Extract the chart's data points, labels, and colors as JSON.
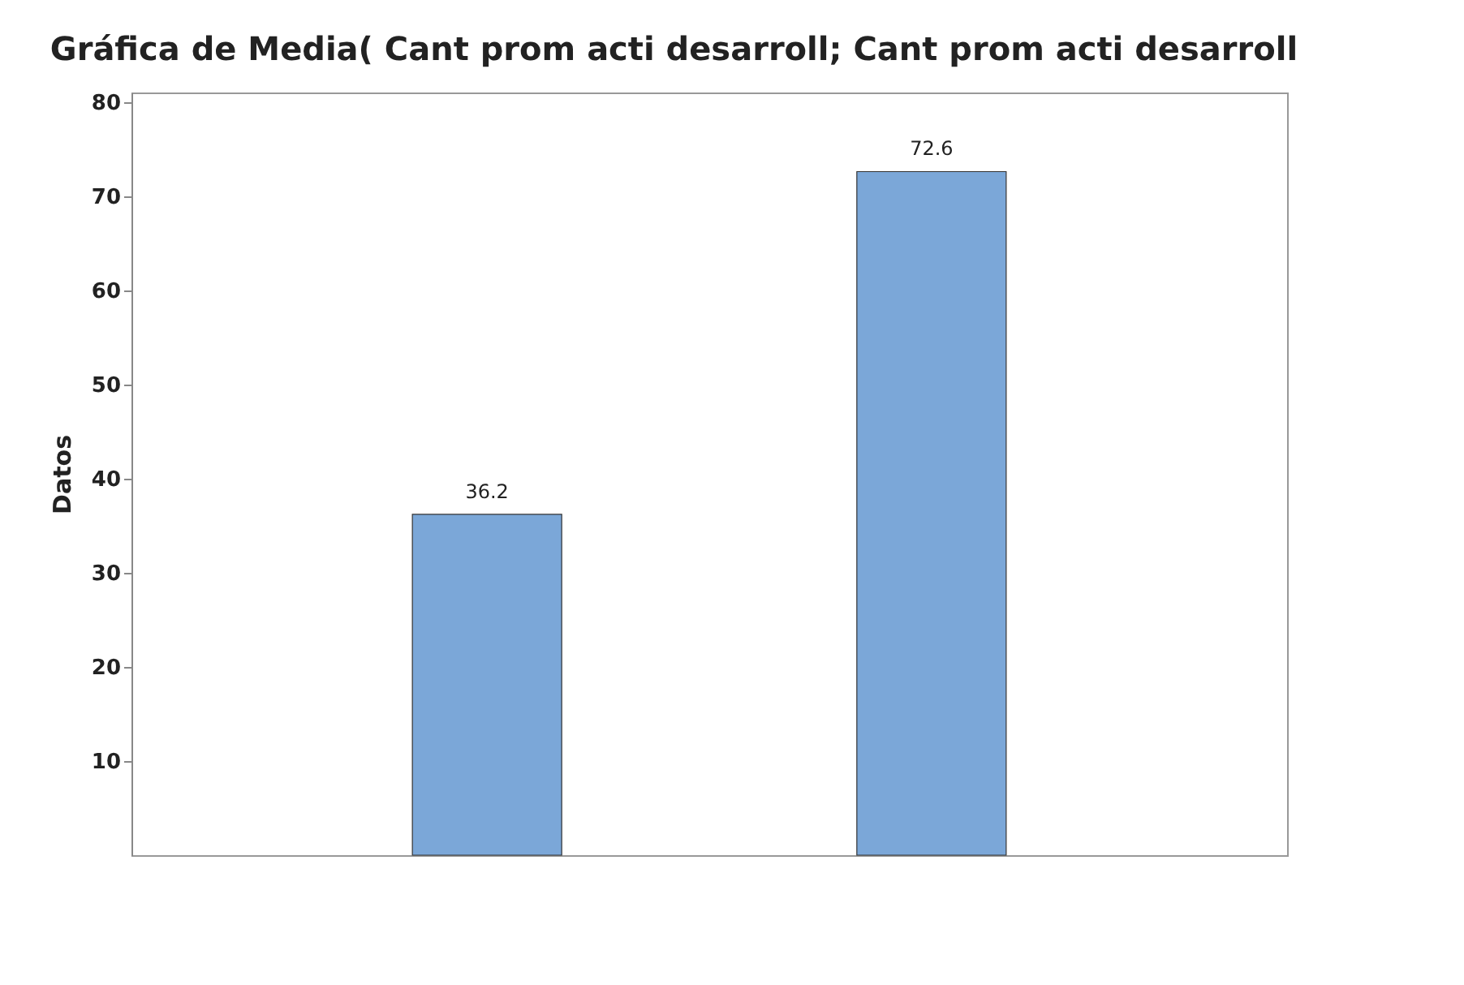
{
  "chart_data": {
    "type": "bar",
    "title": "Gráfica de Media( Cant prom acti desarroll; Cant prom acti desarroll",
    "ylabel": "Datos",
    "categories": [
      null,
      null
    ],
    "values": [
      36.2,
      72.6
    ],
    "color": "#7ba7d8",
    "ylim": [
      0,
      81
    ],
    "yticks": [
      10,
      20,
      30,
      40,
      50,
      60,
      70,
      80
    ],
    "data_labels": true,
    "tick_labels": "y"
  }
}
